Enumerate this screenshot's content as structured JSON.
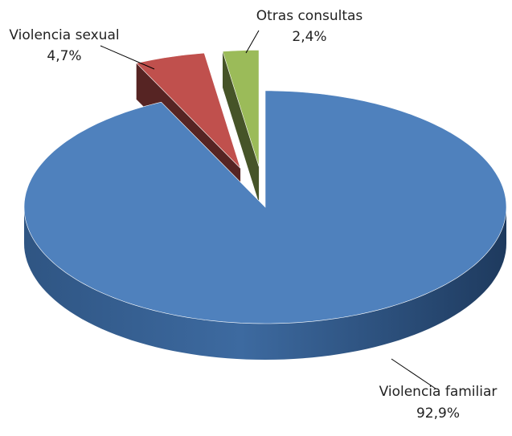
{
  "chart_data": {
    "type": "pie",
    "categories": [
      "Violencia familiar",
      "Violencia sexual",
      "Otras consultas"
    ],
    "values": [
      92.9,
      4.7,
      2.4
    ],
    "value_labels": [
      "92,9%",
      "4,7%",
      "2,4%"
    ],
    "colors": [
      "#4f81bd",
      "#c0504d",
      "#9bbb59"
    ]
  }
}
